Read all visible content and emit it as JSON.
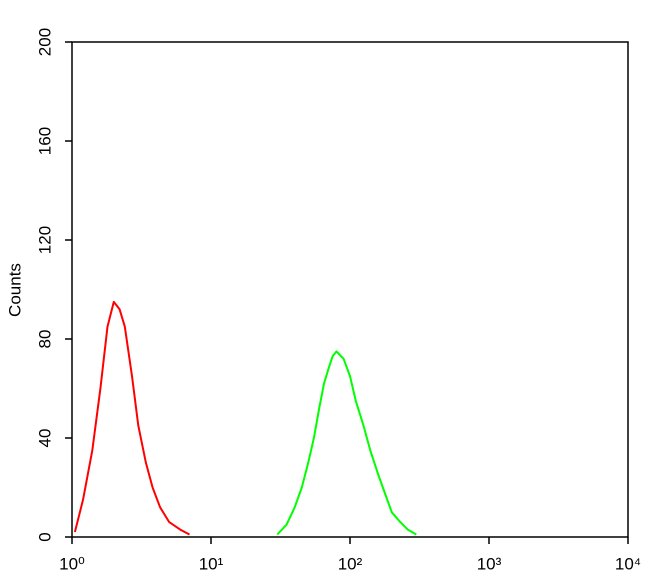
{
  "chart_data": {
    "type": "line",
    "ylabel": "Counts",
    "xscale": "log",
    "xlim": [
      1,
      10000
    ],
    "xticks": [
      {
        "value": 1,
        "label": "10⁰"
      },
      {
        "value": 10,
        "label": "10¹"
      },
      {
        "value": 100,
        "label": "10²"
      },
      {
        "value": 1000,
        "label": "10³"
      },
      {
        "value": 10000,
        "label": "10⁴"
      }
    ],
    "ylim": [
      0,
      200
    ],
    "yticks": [
      0,
      40,
      80,
      120,
      160,
      200
    ],
    "series": [
      {
        "color": "#ff0000",
        "x": [
          1.05,
          1.2,
          1.4,
          1.6,
          1.8,
          2.0,
          2.2,
          2.4,
          2.7,
          3.0,
          3.4,
          3.8,
          4.3,
          5,
          6,
          7
        ],
        "values": [
          2,
          15,
          35,
          60,
          85,
          95,
          92,
          85,
          65,
          45,
          30,
          20,
          12,
          6,
          3,
          1
        ]
      },
      {
        "color": "#00ff00",
        "x": [
          30,
          35,
          40,
          45,
          50,
          55,
          60,
          65,
          70,
          75,
          80,
          90,
          100,
          110,
          125,
          140,
          160,
          180,
          200,
          230,
          260,
          300
        ],
        "values": [
          1,
          5,
          12,
          20,
          30,
          40,
          52,
          62,
          68,
          73,
          75,
          72,
          65,
          55,
          45,
          35,
          25,
          17,
          10,
          6,
          3,
          1
        ]
      }
    ]
  }
}
